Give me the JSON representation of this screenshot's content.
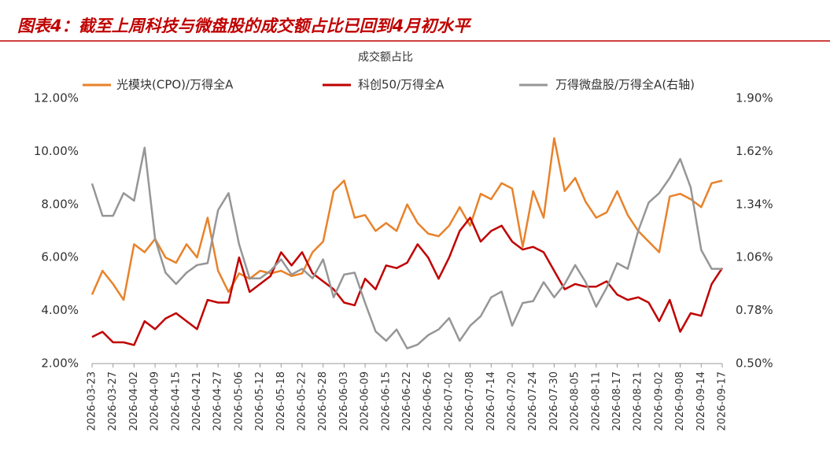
{
  "header": {
    "title": "图表4：截至上周科技与微盘股的成交额占比已回到4月初水平"
  },
  "chart_data": {
    "type": "line",
    "title": "成交额占比",
    "categories": [
      "2026-03-23",
      null,
      "2026-03-27",
      null,
      "2026-04-02",
      null,
      "2026-04-09",
      null,
      "2026-04-15",
      null,
      "2026-04-21",
      null,
      "2026-04-27",
      null,
      "2026-05-06",
      null,
      "2026-05-12",
      null,
      "2026-05-18",
      null,
      "2026-05-22",
      null,
      "2026-05-28",
      null,
      "2026-06-03",
      null,
      "2026-06-09",
      null,
      "2026-06-15",
      null,
      "2026-06-22",
      null,
      "2026-06-26",
      null,
      "2026-07-02",
      null,
      "2026-07-08",
      null,
      "2026-07-14",
      null,
      "2026-07-20",
      null,
      "2026-07-24",
      null,
      "2026-07-30",
      null,
      "2026-08-05",
      null,
      "2026-08-11",
      null,
      "2026-08-17",
      null,
      "2026-08-21",
      null,
      "2026-09-02",
      null,
      "2026-09-08",
      null,
      "2026-09-14",
      null,
      "2026-09-17"
    ],
    "series": [
      {
        "name": "光模块(CPO)/万得全A",
        "color": "#e8822a",
        "values": [
          4.6,
          5.5,
          5.0,
          4.4,
          6.5,
          6.2,
          6.7,
          6.0,
          5.8,
          6.5,
          6.0,
          7.5,
          5.5,
          4.7,
          5.4,
          5.2,
          5.5,
          5.4,
          5.5,
          5.3,
          5.4,
          6.2,
          6.6,
          8.5,
          8.9,
          7.5,
          7.6,
          7.0,
          7.3,
          7.0,
          8.0,
          7.3,
          6.9,
          6.8,
          7.2,
          7.9,
          7.2,
          8.4,
          8.2,
          8.8,
          8.6,
          6.4,
          8.5,
          7.5,
          10.5,
          8.5,
          9.0,
          8.1,
          7.5,
          7.7,
          8.5,
          7.6,
          7.0,
          6.6,
          6.2,
          8.3,
          8.4,
          8.2,
          7.9,
          8.8,
          8.9
        ]
      },
      {
        "name": "科创50/万得全A",
        "color": "#c00000",
        "values": [
          3.0,
          3.2,
          2.8,
          2.8,
          2.7,
          3.6,
          3.3,
          3.7,
          3.9,
          3.6,
          3.3,
          4.4,
          4.3,
          4.3,
          6.0,
          4.7,
          5.0,
          5.3,
          6.2,
          5.7,
          6.2,
          5.4,
          5.1,
          4.8,
          4.3,
          4.2,
          5.2,
          4.8,
          5.7,
          5.6,
          5.8,
          6.5,
          6.0,
          5.2,
          6.0,
          7.0,
          7.5,
          6.6,
          7.0,
          7.2,
          6.6,
          6.3,
          6.4,
          6.2,
          5.5,
          4.8,
          5.0,
          4.9,
          4.9,
          5.1,
          4.6,
          4.4,
          4.5,
          4.3,
          3.6,
          4.4,
          3.2,
          3.9,
          3.8,
          5.0,
          5.6
        ]
      },
      {
        "name": "万得微盘股/万得全A(右轴)",
        "color": "#969696",
        "axis": "y2",
        "values": [
          1.45,
          1.28,
          1.28,
          1.4,
          1.36,
          1.64,
          1.16,
          0.98,
          0.92,
          0.98,
          1.02,
          1.03,
          1.31,
          1.4,
          1.13,
          0.95,
          0.95,
          0.99,
          1.05,
          0.97,
          1.0,
          0.95,
          1.05,
          0.85,
          0.97,
          0.98,
          0.82,
          0.67,
          0.62,
          0.68,
          0.58,
          0.6,
          0.65,
          0.68,
          0.74,
          0.62,
          0.7,
          0.75,
          0.85,
          0.88,
          0.7,
          0.82,
          0.83,
          0.93,
          0.85,
          0.92,
          1.02,
          0.93,
          0.8,
          0.9,
          1.03,
          1.0,
          1.2,
          1.35,
          1.4,
          1.48,
          1.58,
          1.43,
          1.1,
          1.0,
          1.0
        ]
      }
    ],
    "ylim": [
      2,
      12
    ],
    "yticks": [
      {
        "value": 2,
        "label": "2.00%"
      },
      {
        "value": 4,
        "label": "4.00%"
      },
      {
        "value": 6,
        "label": "6.00%"
      },
      {
        "value": 8,
        "label": "8.00%"
      },
      {
        "value": 10,
        "label": "10.00%"
      },
      {
        "value": 12,
        "label": "12.00%"
      }
    ],
    "y2lim": [
      0.5,
      1.9
    ],
    "y2ticks": [
      {
        "value": 0.5,
        "label": "0.50%"
      },
      {
        "value": 0.78,
        "label": "0.78%"
      },
      {
        "value": 1.06,
        "label": "1.06%"
      },
      {
        "value": 1.34,
        "label": "1.34%"
      },
      {
        "value": 1.62,
        "label": "1.62%"
      },
      {
        "value": 1.9,
        "label": "1.90%"
      }
    ],
    "legend": "top"
  }
}
